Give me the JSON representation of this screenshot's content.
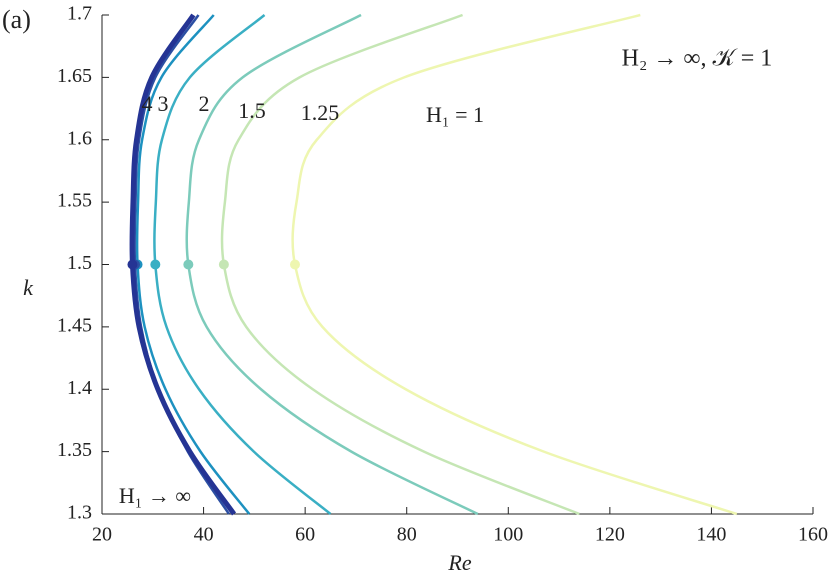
{
  "chart_data": {
    "type": "line",
    "panel_label": "(a)",
    "annotation": "H₂ → ∞, 𝒦 = 1",
    "x_label": "Re",
    "y_label": "k",
    "xlim": [
      20,
      160
    ],
    "xticks": [
      20,
      40,
      60,
      80,
      100,
      120,
      140,
      160
    ],
    "ylim": [
      1.3,
      1.7
    ],
    "yticks": [
      1.3,
      1.35,
      1.4,
      1.45,
      1.5,
      1.55,
      1.6,
      1.65,
      1.7
    ],
    "y": [
      1.3,
      1.35,
      1.4,
      1.45,
      1.5,
      1.55,
      1.6,
      1.65,
      1.7
    ],
    "series": [
      {
        "name": "H₁ → ∞",
        "color": "#253494",
        "x": [
          46,
          37.3,
          31,
          27.3,
          26,
          26.1,
          26.8,
          29.8,
          38
        ]
      },
      {
        "name": "4",
        "color": "#2c4fa3",
        "x": [
          45,
          36.9,
          31.1,
          27.7,
          26.5,
          26.6,
          27.3,
          30.5,
          39
        ]
      },
      {
        "name": "3",
        "color": "#1d91c0",
        "x": [
          49,
          39.4,
          32.5,
          28.4,
          27,
          27.1,
          27.9,
          31.7,
          42
        ]
      },
      {
        "name": "2",
        "color": "#3aafc4",
        "x": [
          65,
          49.9,
          39.1,
          32.7,
          30.5,
          30.6,
          31.8,
          37.3,
          52
        ]
      },
      {
        "name": "1.5",
        "color": "#7ccbbb",
        "x": [
          94,
          69.1,
          51.3,
          40.6,
          37,
          37.1,
          39.1,
          47.7,
          71
        ]
      },
      {
        "name": "1.25",
        "color": "#c5e6b4",
        "x": [
          114,
          83.4,
          61.5,
          48.4,
          44,
          44.2,
          46.9,
          58.9,
          91
        ]
      },
      {
        "name": "H₁ = 1",
        "color": "#eef6b0",
        "x": [
          145,
          107,
          79.8,
          63.4,
          58,
          58.3,
          62.3,
          79.5,
          126
        ]
      }
    ]
  }
}
